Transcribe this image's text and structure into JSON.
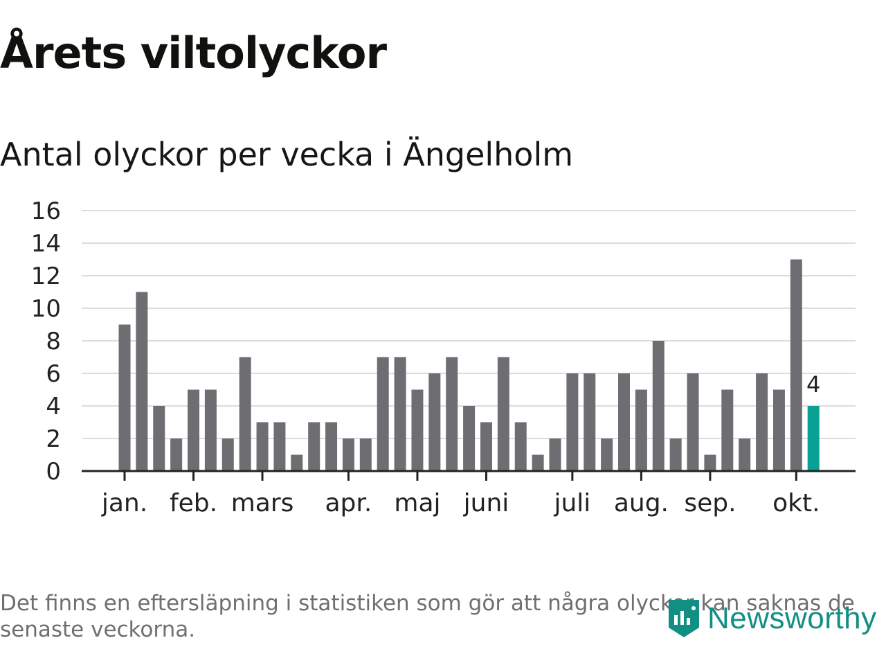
{
  "title": "Årets viltolyckor",
  "subtitle": "Antal olyckor per vecka i Ängelholm",
  "footnote": "Det finns en eftersläpning i statistiken som gör att några olyckor kan saknas de senaste veckorna.",
  "brand": "Newsworthy",
  "colors": {
    "bar": "#6e6d72",
    "highlight": "#0aa093",
    "grid": "#dcdcdc",
    "axis": "#222222",
    "brand": "#128f83"
  },
  "chart_data": {
    "type": "bar",
    "title": "Antal olyckor per vecka i Ängelholm",
    "xlabel": "",
    "ylabel": "",
    "ylim": [
      0,
      16
    ],
    "yticks": [
      "0",
      "2",
      "4",
      "6",
      "8",
      "10",
      "12",
      "14",
      "16"
    ],
    "values": [
      9,
      11,
      4,
      2,
      5,
      5,
      2,
      7,
      3,
      3,
      1,
      3,
      3,
      2,
      2,
      7,
      7,
      5,
      6,
      7,
      4,
      3,
      7,
      3,
      1,
      2,
      6,
      6,
      2,
      6,
      5,
      8,
      2,
      6,
      1,
      5,
      2,
      6,
      5,
      13,
      4
    ],
    "highlight_index": 40,
    "highlight_label": "4",
    "month_labels": [
      {
        "label": "jan.",
        "bar": 0
      },
      {
        "label": "feb.",
        "bar": 4
      },
      {
        "label": "mars",
        "bar": 8
      },
      {
        "label": "apr.",
        "bar": 13
      },
      {
        "label": "maj",
        "bar": 17
      },
      {
        "label": "juni",
        "bar": 21
      },
      {
        "label": "juli",
        "bar": 26
      },
      {
        "label": "aug.",
        "bar": 30
      },
      {
        "label": "sep.",
        "bar": 34
      },
      {
        "label": "okt.",
        "bar": 39
      }
    ]
  }
}
